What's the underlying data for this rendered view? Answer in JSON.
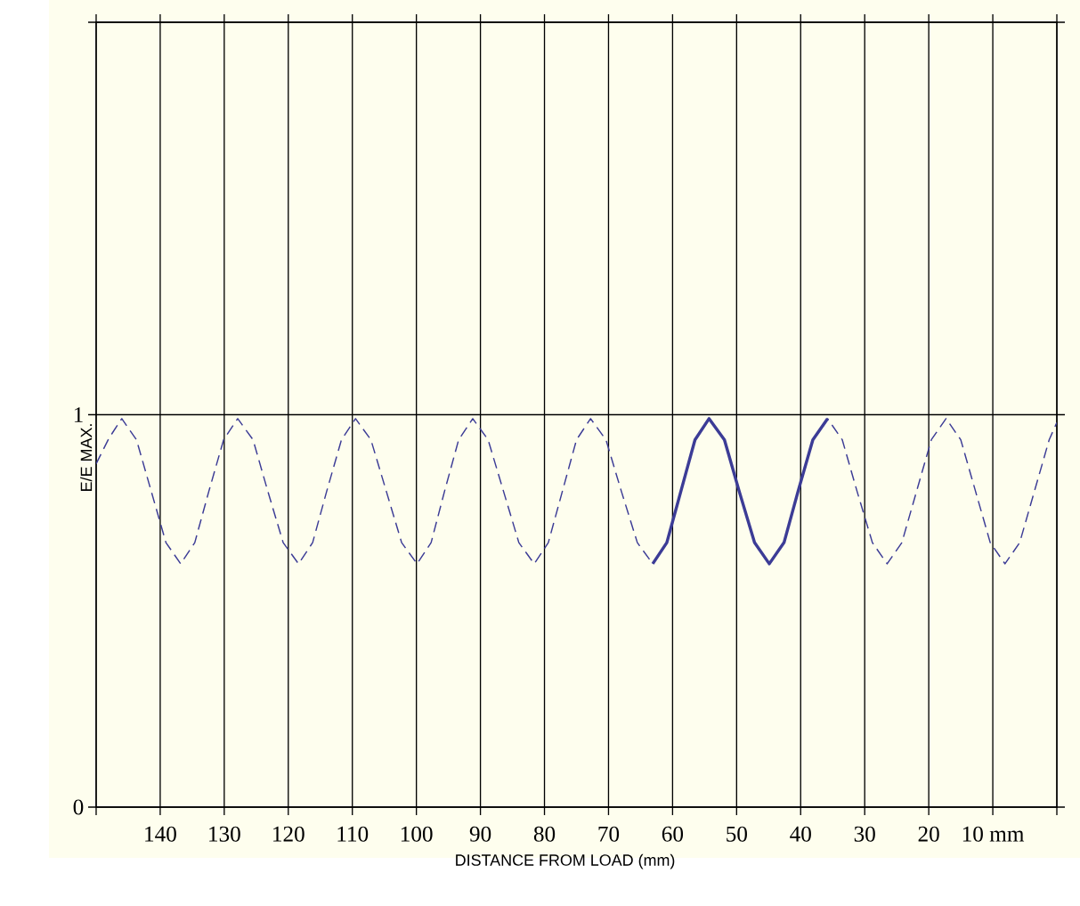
{
  "chart_data": {
    "type": "line",
    "xlabel": "DISTANCE FROM LOAD (mm)",
    "ylabel": "E/E MAX.",
    "xlim": [
      150,
      0
    ],
    "ylim": [
      0,
      2
    ],
    "xticks": [
      {
        "value": 150,
        "label": null
      },
      140,
      130,
      120,
      110,
      100,
      90,
      80,
      70,
      60,
      50,
      40,
      30,
      20,
      {
        "value": 10,
        "label": "10 mm"
      },
      {
        "value": 0,
        "label": null
      }
    ],
    "yticks": [
      0,
      1,
      {
        "value": 2,
        "label": null
      }
    ],
    "grid": true,
    "marker": "none",
    "series": [
      {
        "color": "#3c3c96",
        "line_style": "dashed",
        "x": [
          150,
          148,
          146.0,
          143.7,
          141.4,
          139.1,
          136.8,
          134.6,
          132.4,
          130.1,
          127.9,
          125.5,
          123.2,
          120.8,
          118.4,
          116.2,
          114.0,
          111.7,
          109.5,
          107.1,
          104.7,
          102.3,
          99.9,
          97.7,
          95.6,
          93.4,
          91.2,
          88.8,
          86.4,
          84.0,
          81.6,
          79.4,
          77.2,
          75.0,
          72.8,
          70.4,
          68.0,
          65.5,
          63.1,
          60.9,
          58.7,
          56.5,
          54.3,
          51.9,
          49.6,
          47.2,
          44.9,
          42.6,
          40.4,
          38.1,
          35.8,
          33.5,
          31.2,
          28.8,
          26.5,
          24.2,
          21.9,
          19.6,
          17.3,
          15.0,
          12.7,
          10.4,
          8.1,
          5.8,
          3.5,
          1.2,
          0
        ],
        "values": [
          0.875,
          0.94,
          0.99,
          0.936,
          0.805,
          0.674,
          0.62,
          0.674,
          0.805,
          0.936,
          0.99,
          0.936,
          0.805,
          0.674,
          0.62,
          0.674,
          0.805,
          0.936,
          0.99,
          0.936,
          0.805,
          0.674,
          0.62,
          0.674,
          0.805,
          0.936,
          0.99,
          0.936,
          0.805,
          0.674,
          0.62,
          0.674,
          0.805,
          0.936,
          0.99,
          0.936,
          0.805,
          0.674,
          0.62,
          0.674,
          0.805,
          0.936,
          0.99,
          0.936,
          0.805,
          0.674,
          0.62,
          0.674,
          0.805,
          0.936,
          0.99,
          0.936,
          0.805,
          0.674,
          0.62,
          0.674,
          0.805,
          0.936,
          0.99,
          0.936,
          0.805,
          0.674,
          0.62,
          0.674,
          0.805,
          0.936,
          0.98
        ]
      },
      {
        "color": "#3c3c96",
        "line_style": "solid",
        "x": [
          63.1,
          60.9,
          58.7,
          56.5,
          54.3,
          51.9,
          49.6,
          47.2,
          44.9,
          42.6,
          40.4,
          38.1,
          35.8
        ],
        "values": [
          0.62,
          0.674,
          0.805,
          0.936,
          0.99,
          0.936,
          0.805,
          0.674,
          0.62,
          0.674,
          0.805,
          0.936,
          0.99
        ]
      }
    ]
  }
}
